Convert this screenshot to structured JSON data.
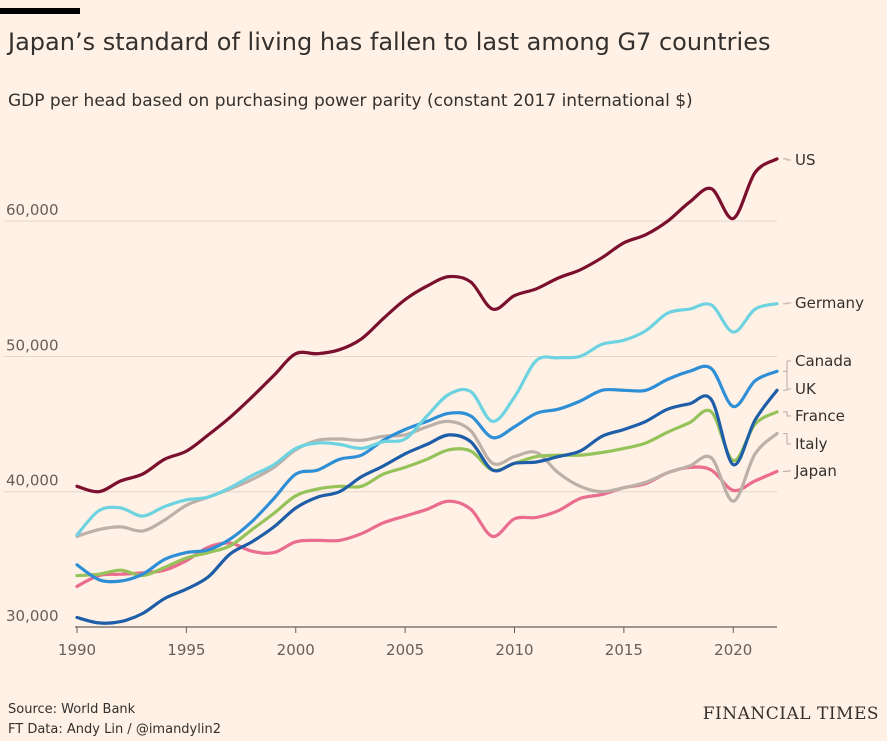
{
  "title": "Japan’s standard of living has fallen to last among G7 countries",
  "subtitle": "GDP per head based on purchasing power parity (constant 2017 international $)",
  "source_line1": "Source: World Bank",
  "source_line2": "FT Data: Andy Lin / @imandylin2",
  "brand": "FINANCIAL TIMES",
  "colors": {
    "background": "#fff1e5",
    "US": "#7a0f2e",
    "Germany": "#6dd3e0",
    "Canada": "#1e5ea8",
    "UK": "#2f8fd6",
    "France": "#96c25a",
    "Italy": "#bcb0a8",
    "Japan": "#ea6c8f"
  },
  "chart_data": {
    "type": "line",
    "title": "Japan’s standard of living has fallen to last among G7 countries",
    "subtitle": "GDP per head based on purchasing power parity (constant 2017 international $)",
    "xlabel": "",
    "ylabel": "",
    "xlim": [
      1990,
      2022
    ],
    "ylim": [
      30000,
      66000
    ],
    "xticks": [
      1990,
      1995,
      2000,
      2005,
      2010,
      2015,
      2020
    ],
    "xtick_labels": [
      "1990",
      "1995",
      "2000",
      "2005",
      "2010",
      "2015",
      "2020"
    ],
    "yticks": [
      30000,
      40000,
      50000,
      60000
    ],
    "ytick_labels": [
      "30,000",
      "40,000",
      "50,000",
      "60,000"
    ],
    "grid": "horizontal",
    "legend": "direct labels at right end of lines",
    "x": [
      1990,
      1991,
      1992,
      1993,
      1994,
      1995,
      1996,
      1997,
      1998,
      1999,
      2000,
      2001,
      2002,
      2003,
      2004,
      2005,
      2006,
      2007,
      2008,
      2009,
      2010,
      2011,
      2012,
      2013,
      2014,
      2015,
      2016,
      2017,
      2018,
      2019,
      2020,
      2021,
      2022
    ],
    "series": [
      {
        "name": "US",
        "values": [
          40400,
          40000,
          40800,
          41300,
          42400,
          43000,
          44200,
          45500,
          47000,
          48600,
          50200,
          50200,
          50500,
          51300,
          52800,
          54200,
          55200,
          55900,
          55500,
          53500,
          54500,
          55000,
          55800,
          56400,
          57300,
          58400,
          59000,
          60000,
          61400,
          62400,
          60200,
          63600,
          64600
        ]
      },
      {
        "name": "Germany",
        "values": [
          36800,
          38600,
          38800,
          38200,
          38900,
          39400,
          39600,
          40300,
          41200,
          42000,
          43200,
          43600,
          43500,
          43200,
          43700,
          43900,
          45600,
          47200,
          47400,
          45200,
          47000,
          49700,
          49900,
          50000,
          50900,
          51200,
          51900,
          53200,
          53500,
          53800,
          51800,
          53500,
          53900
        ]
      },
      {
        "name": "Canada",
        "values": [
          30700,
          30300,
          30400,
          31000,
          32100,
          32800,
          33700,
          35400,
          36300,
          37400,
          38800,
          39600,
          40000,
          41100,
          41900,
          42800,
          43500,
          44200,
          43700,
          41600,
          42100,
          42200,
          42600,
          43000,
          44100,
          44600,
          45200,
          46100,
          46500,
          46800,
          42000,
          45300,
          47500
        ]
      },
      {
        "name": "UK",
        "values": [
          34600,
          33500,
          33400,
          33900,
          35000,
          35500,
          35700,
          36500,
          37800,
          39500,
          41300,
          41600,
          42400,
          42700,
          43800,
          44600,
          45200,
          45800,
          45600,
          44000,
          44800,
          45800,
          46100,
          46700,
          47500,
          47500,
          47500,
          48300,
          48900,
          49100,
          46300,
          48200,
          48900
        ]
      },
      {
        "name": "France",
        "values": [
          33800,
          33900,
          34200,
          33800,
          34400,
          35100,
          35500,
          36000,
          37200,
          38400,
          39700,
          40200,
          40400,
          40400,
          41300,
          41800,
          42400,
          43100,
          43000,
          41600,
          42100,
          42600,
          42700,
          42700,
          42900,
          43200,
          43600,
          44400,
          45100,
          45900,
          42300,
          45000,
          45900
        ]
      },
      {
        "name": "Italy",
        "values": [
          36700,
          37200,
          37400,
          37100,
          37900,
          39000,
          39600,
          40200,
          40900,
          41800,
          43100,
          43800,
          43900,
          43800,
          44100,
          44200,
          44800,
          45200,
          44500,
          42100,
          42600,
          42900,
          41400,
          40400,
          40000,
          40300,
          40700,
          41400,
          41900,
          42500,
          39300,
          42800,
          44300
        ]
      },
      {
        "name": "Japan",
        "values": [
          33000,
          33800,
          33900,
          34000,
          34200,
          34900,
          35900,
          36200,
          35600,
          35500,
          36300,
          36400,
          36400,
          36900,
          37700,
          38200,
          38700,
          39300,
          38700,
          36700,
          38000,
          38100,
          38600,
          39500,
          39800,
          40300,
          40600,
          41400,
          41800,
          41600,
          40100,
          40800,
          41500
        ]
      }
    ],
    "labels": [
      "US",
      "Germany",
      "Canada",
      "UK",
      "France",
      "Italy",
      "Japan"
    ]
  }
}
